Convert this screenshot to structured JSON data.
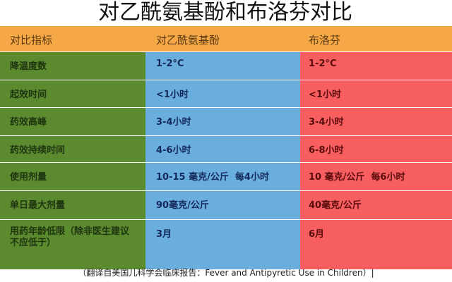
{
  "title": "对乙酰氨基酚和布洛芬对比",
  "headers": [
    "对比指标",
    "对乙酰氨基酚",
    "布洛芬"
  ],
  "rows": [
    [
      "降温度数",
      "1-2°C",
      "1-2°C"
    ],
    [
      "起效时间",
      "<1小时",
      "<1小时"
    ],
    [
      "药效高峰",
      "3-4小时",
      "3-4小时"
    ],
    [
      "药效持续时间",
      "4-6小时",
      "6-8小时"
    ],
    [
      "使用剂量",
      "10-15 毫克/公斤  每4小时",
      "10 毫克/公斤  每6小时"
    ],
    [
      "单日最大剂量",
      "90毫克/公斤",
      "40毫克/公斤"
    ],
    [
      "用药年龄低限（除非医生建议不应低于）",
      "3月",
      "6月"
    ]
  ],
  "footer": "（翻译自美国儿科学会临床报告：Fever and Antipyretic Use in Children）|",
  "colors": {
    "header": "#f6a847",
    "indicator": "#5b8a2f",
    "acetaminophen": "#6aaede",
    "ibuprofen": "#f65e60"
  }
}
